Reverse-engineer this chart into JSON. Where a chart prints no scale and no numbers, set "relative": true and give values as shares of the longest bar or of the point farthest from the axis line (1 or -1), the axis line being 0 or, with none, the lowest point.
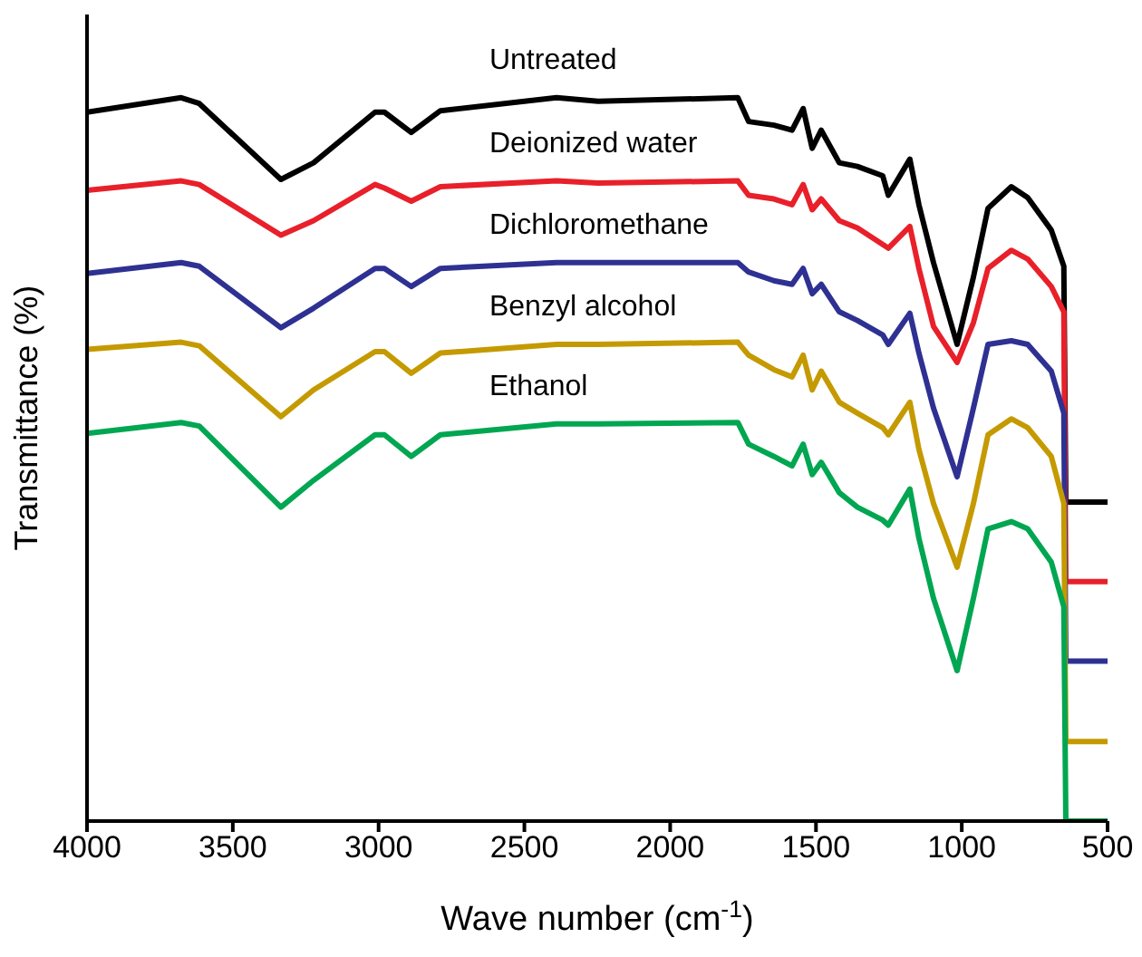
{
  "chart_data": {
    "type": "line",
    "relative": true,
    "xlabel": "Wave number (cm$^{-1}$)",
    "ylabel": "Transmittance (%)",
    "xlim": [
      4000,
      500
    ],
    "xticks": [
      4000,
      3500,
      3000,
      2500,
      2000,
      1500,
      1000,
      500
    ],
    "grid": false,
    "legend": false,
    "marker": "none",
    "line_style": "solid",
    "tick_labels": "x",
    "x": [
      4000,
      3677,
      3615,
      3335,
      3223,
      3012,
      2980,
      2888,
      2788,
      2390,
      2247,
      1768,
      1731,
      1644,
      1582,
      1544,
      1513,
      1482,
      1420,
      1358,
      1271,
      1252,
      1178,
      1147,
      1097,
      1016,
      960,
      910,
      830,
      774,
      693,
      650,
      643,
      500
    ],
    "series": [
      {
        "name": "Untreated",
        "color": "#000000",
        "values": [
          0.98,
          1.0,
          0.992,
          0.887,
          0.91,
          0.98,
          0.98,
          0.952,
          0.982,
          1.0,
          0.995,
          1.0,
          0.967,
          0.962,
          0.955,
          0.985,
          0.93,
          0.955,
          0.91,
          0.905,
          0.892,
          0.865,
          0.915,
          0.852,
          0.772,
          0.659,
          0.752,
          0.847,
          0.877,
          0.862,
          0.817,
          0.767,
          0.441,
          0.441
        ]
      },
      {
        "name": "Deionized water",
        "color": "#e8202a",
        "values": [
          0.872,
          0.885,
          0.88,
          0.81,
          0.83,
          0.88,
          0.875,
          0.857,
          0.877,
          0.885,
          0.882,
          0.885,
          0.865,
          0.86,
          0.852,
          0.88,
          0.845,
          0.86,
          0.83,
          0.82,
          0.797,
          0.792,
          0.822,
          0.764,
          0.684,
          0.634,
          0.689,
          0.764,
          0.789,
          0.777,
          0.739,
          0.704,
          0.331,
          0.331
        ]
      },
      {
        "name": "Dichloromethane",
        "color": "#2e3192",
        "values": [
          0.757,
          0.772,
          0.767,
          0.682,
          0.709,
          0.764,
          0.764,
          0.739,
          0.764,
          0.772,
          0.772,
          0.772,
          0.759,
          0.747,
          0.742,
          0.764,
          0.729,
          0.742,
          0.704,
          0.692,
          0.672,
          0.659,
          0.702,
          0.647,
          0.571,
          0.476,
          0.571,
          0.659,
          0.664,
          0.659,
          0.622,
          0.564,
          0.221,
          0.221
        ]
      },
      {
        "name": "Benzyl alcohol",
        "color": "#c49a00",
        "values": [
          0.652,
          0.662,
          0.657,
          0.559,
          0.596,
          0.649,
          0.649,
          0.619,
          0.647,
          0.659,
          0.659,
          0.662,
          0.644,
          0.624,
          0.614,
          0.644,
          0.596,
          0.622,
          0.579,
          0.564,
          0.544,
          0.534,
          0.579,
          0.514,
          0.439,
          0.351,
          0.439,
          0.534,
          0.556,
          0.544,
          0.504,
          0.439,
          0.11,
          0.11
        ]
      },
      {
        "name": "Ethanol",
        "color": "#00a651",
        "values": [
          0.536,
          0.551,
          0.546,
          0.434,
          0.471,
          0.534,
          0.534,
          0.504,
          0.534,
          0.549,
          0.549,
          0.551,
          0.521,
          0.504,
          0.491,
          0.521,
          0.479,
          0.496,
          0.454,
          0.434,
          0.416,
          0.409,
          0.459,
          0.391,
          0.308,
          0.208,
          0.308,
          0.404,
          0.414,
          0.404,
          0.358,
          0.296,
          0,
          0
        ]
      }
    ]
  }
}
